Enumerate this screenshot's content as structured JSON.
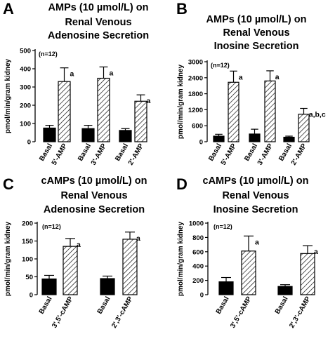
{
  "colors": {
    "basal_fill": "#000000",
    "amp_fill": "#ffffff",
    "axis": "#000000",
    "hatch": "#000000"
  },
  "chart_data": [
    {
      "type": "bar",
      "panel_letter": "A",
      "title": [
        "AMPs (10 µmol/L) on",
        "Renal Venous",
        "Adenosine Secretion"
      ],
      "ylabel": "pmol/min/gram kidney",
      "n_label": "(n=12)",
      "ylim": [
        0,
        500
      ],
      "yticks": [
        "0",
        "100",
        "200",
        "300",
        "400",
        "500"
      ],
      "categories": [
        "Basal",
        "5'-AMP",
        "Basal",
        "3'-AMP",
        "Basal",
        "2'-AMP"
      ],
      "values": [
        75,
        330,
        72,
        348,
        62,
        222
      ],
      "errors": [
        15,
        75,
        18,
        62,
        10,
        35
      ],
      "fill": [
        "basal",
        "amp",
        "basal",
        "amp",
        "basal",
        "amp"
      ],
      "annotations": [
        "",
        "a",
        "",
        "a",
        "",
        "a"
      ]
    },
    {
      "type": "bar",
      "panel_letter": "B",
      "title": [
        "AMPs (10 µmol/L) on",
        "Renal Venous",
        "Inosine Secretion"
      ],
      "ylabel": "pmol/min/gram kidney",
      "n_label": "(n=12)",
      "ylim": [
        0,
        3000
      ],
      "yticks": [
        "0",
        "600",
        "1200",
        "1800",
        "2400",
        "3000"
      ],
      "categories": [
        "Basal",
        "5'-AMP",
        "Basal",
        "3'-AMP",
        "Basal",
        "2'-AMP"
      ],
      "values": [
        210,
        2230,
        290,
        2280,
        170,
        1030
      ],
      "errors": [
        70,
        420,
        180,
        380,
        40,
        220
      ],
      "fill": [
        "basal",
        "amp",
        "basal",
        "amp",
        "basal",
        "amp"
      ],
      "annotations": [
        "",
        "a",
        "",
        "a",
        "",
        "a,b,c"
      ]
    },
    {
      "type": "bar",
      "panel_letter": "C",
      "title": [
        "cAMPs (10 µmol/L) on",
        "Renal Venous",
        "Adenosine Secretion"
      ],
      "ylabel": "pmol/min/gram kidney",
      "n_label": "(n=12)",
      "ylim": [
        0,
        200
      ],
      "yticks": [
        "0",
        "50",
        "100",
        "150",
        "200"
      ],
      "categories": [
        "Basal",
        "3',5'-cAMP",
        "Basal",
        "2',3'-cAMP"
      ],
      "values": [
        44,
        135,
        45,
        155
      ],
      "errors": [
        10,
        22,
        7,
        20
      ],
      "fill": [
        "basal",
        "amp",
        "basal",
        "amp"
      ],
      "annotations": [
        "",
        "a",
        "",
        "a"
      ]
    },
    {
      "type": "bar",
      "panel_letter": "D",
      "title": [
        "cAMPs (10 µmol/L) on",
        "Renal Venous",
        "Inosine Secretion"
      ],
      "ylabel": "pmol/min/gram kidney",
      "n_label": "(n=12)",
      "ylim": [
        0,
        1000
      ],
      "yticks": [
        "0",
        "200",
        "400",
        "600",
        "800",
        "1000"
      ],
      "categories": [
        "Basal",
        "3',5'-cAMP",
        "Basal",
        "2',3'-cAMP"
      ],
      "values": [
        180,
        610,
        115,
        575
      ],
      "errors": [
        60,
        210,
        25,
        110
      ],
      "fill": [
        "basal",
        "amp",
        "basal",
        "amp"
      ],
      "annotations": [
        "",
        "a",
        "",
        "a"
      ]
    }
  ]
}
